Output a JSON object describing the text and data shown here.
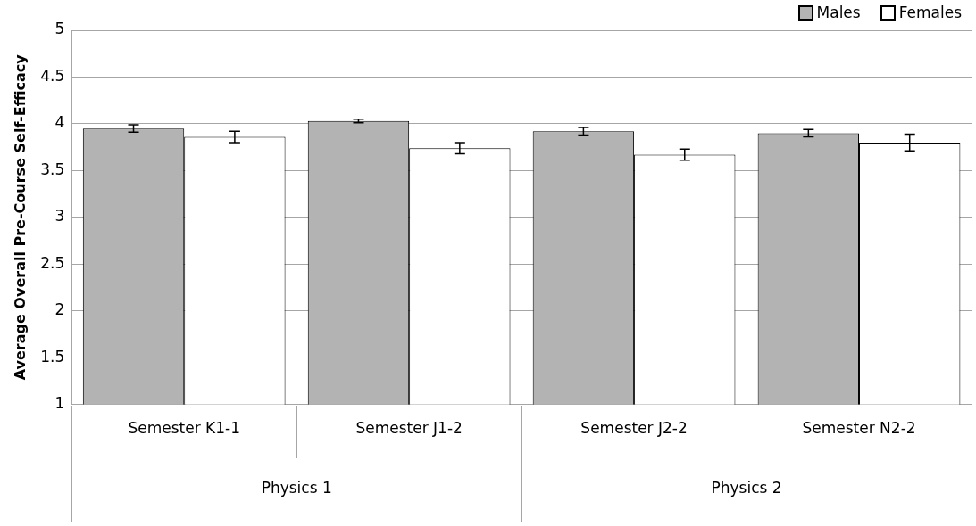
{
  "chart_data": {
    "type": "bar",
    "ylabel": "Average Overall Pre-Course Self-Efficacy",
    "categories": [
      "Semester K1-1",
      "Semester J1-2",
      "Semester J2-2",
      "Semester N2-2"
    ],
    "series": [
      {
        "name": "Males",
        "color": "#b3b3b3",
        "values": [
          3.95,
          4.03,
          3.92,
          3.9
        ],
        "errors": [
          0.04,
          0.02,
          0.04,
          0.04
        ]
      },
      {
        "name": "Females",
        "color": "#ffffff",
        "values": [
          3.86,
          3.74,
          3.67,
          3.8
        ],
        "errors": [
          0.06,
          0.06,
          0.06,
          0.09
        ]
      }
    ],
    "annotations": [
      "Physics 1",
      "Physics 2"
    ],
    "ylim": [
      1,
      5
    ],
    "yticks": [
      1,
      1.5,
      2,
      2.5,
      3,
      3.5,
      4,
      4.5,
      5
    ],
    "grid": "y",
    "legend": "top right"
  }
}
